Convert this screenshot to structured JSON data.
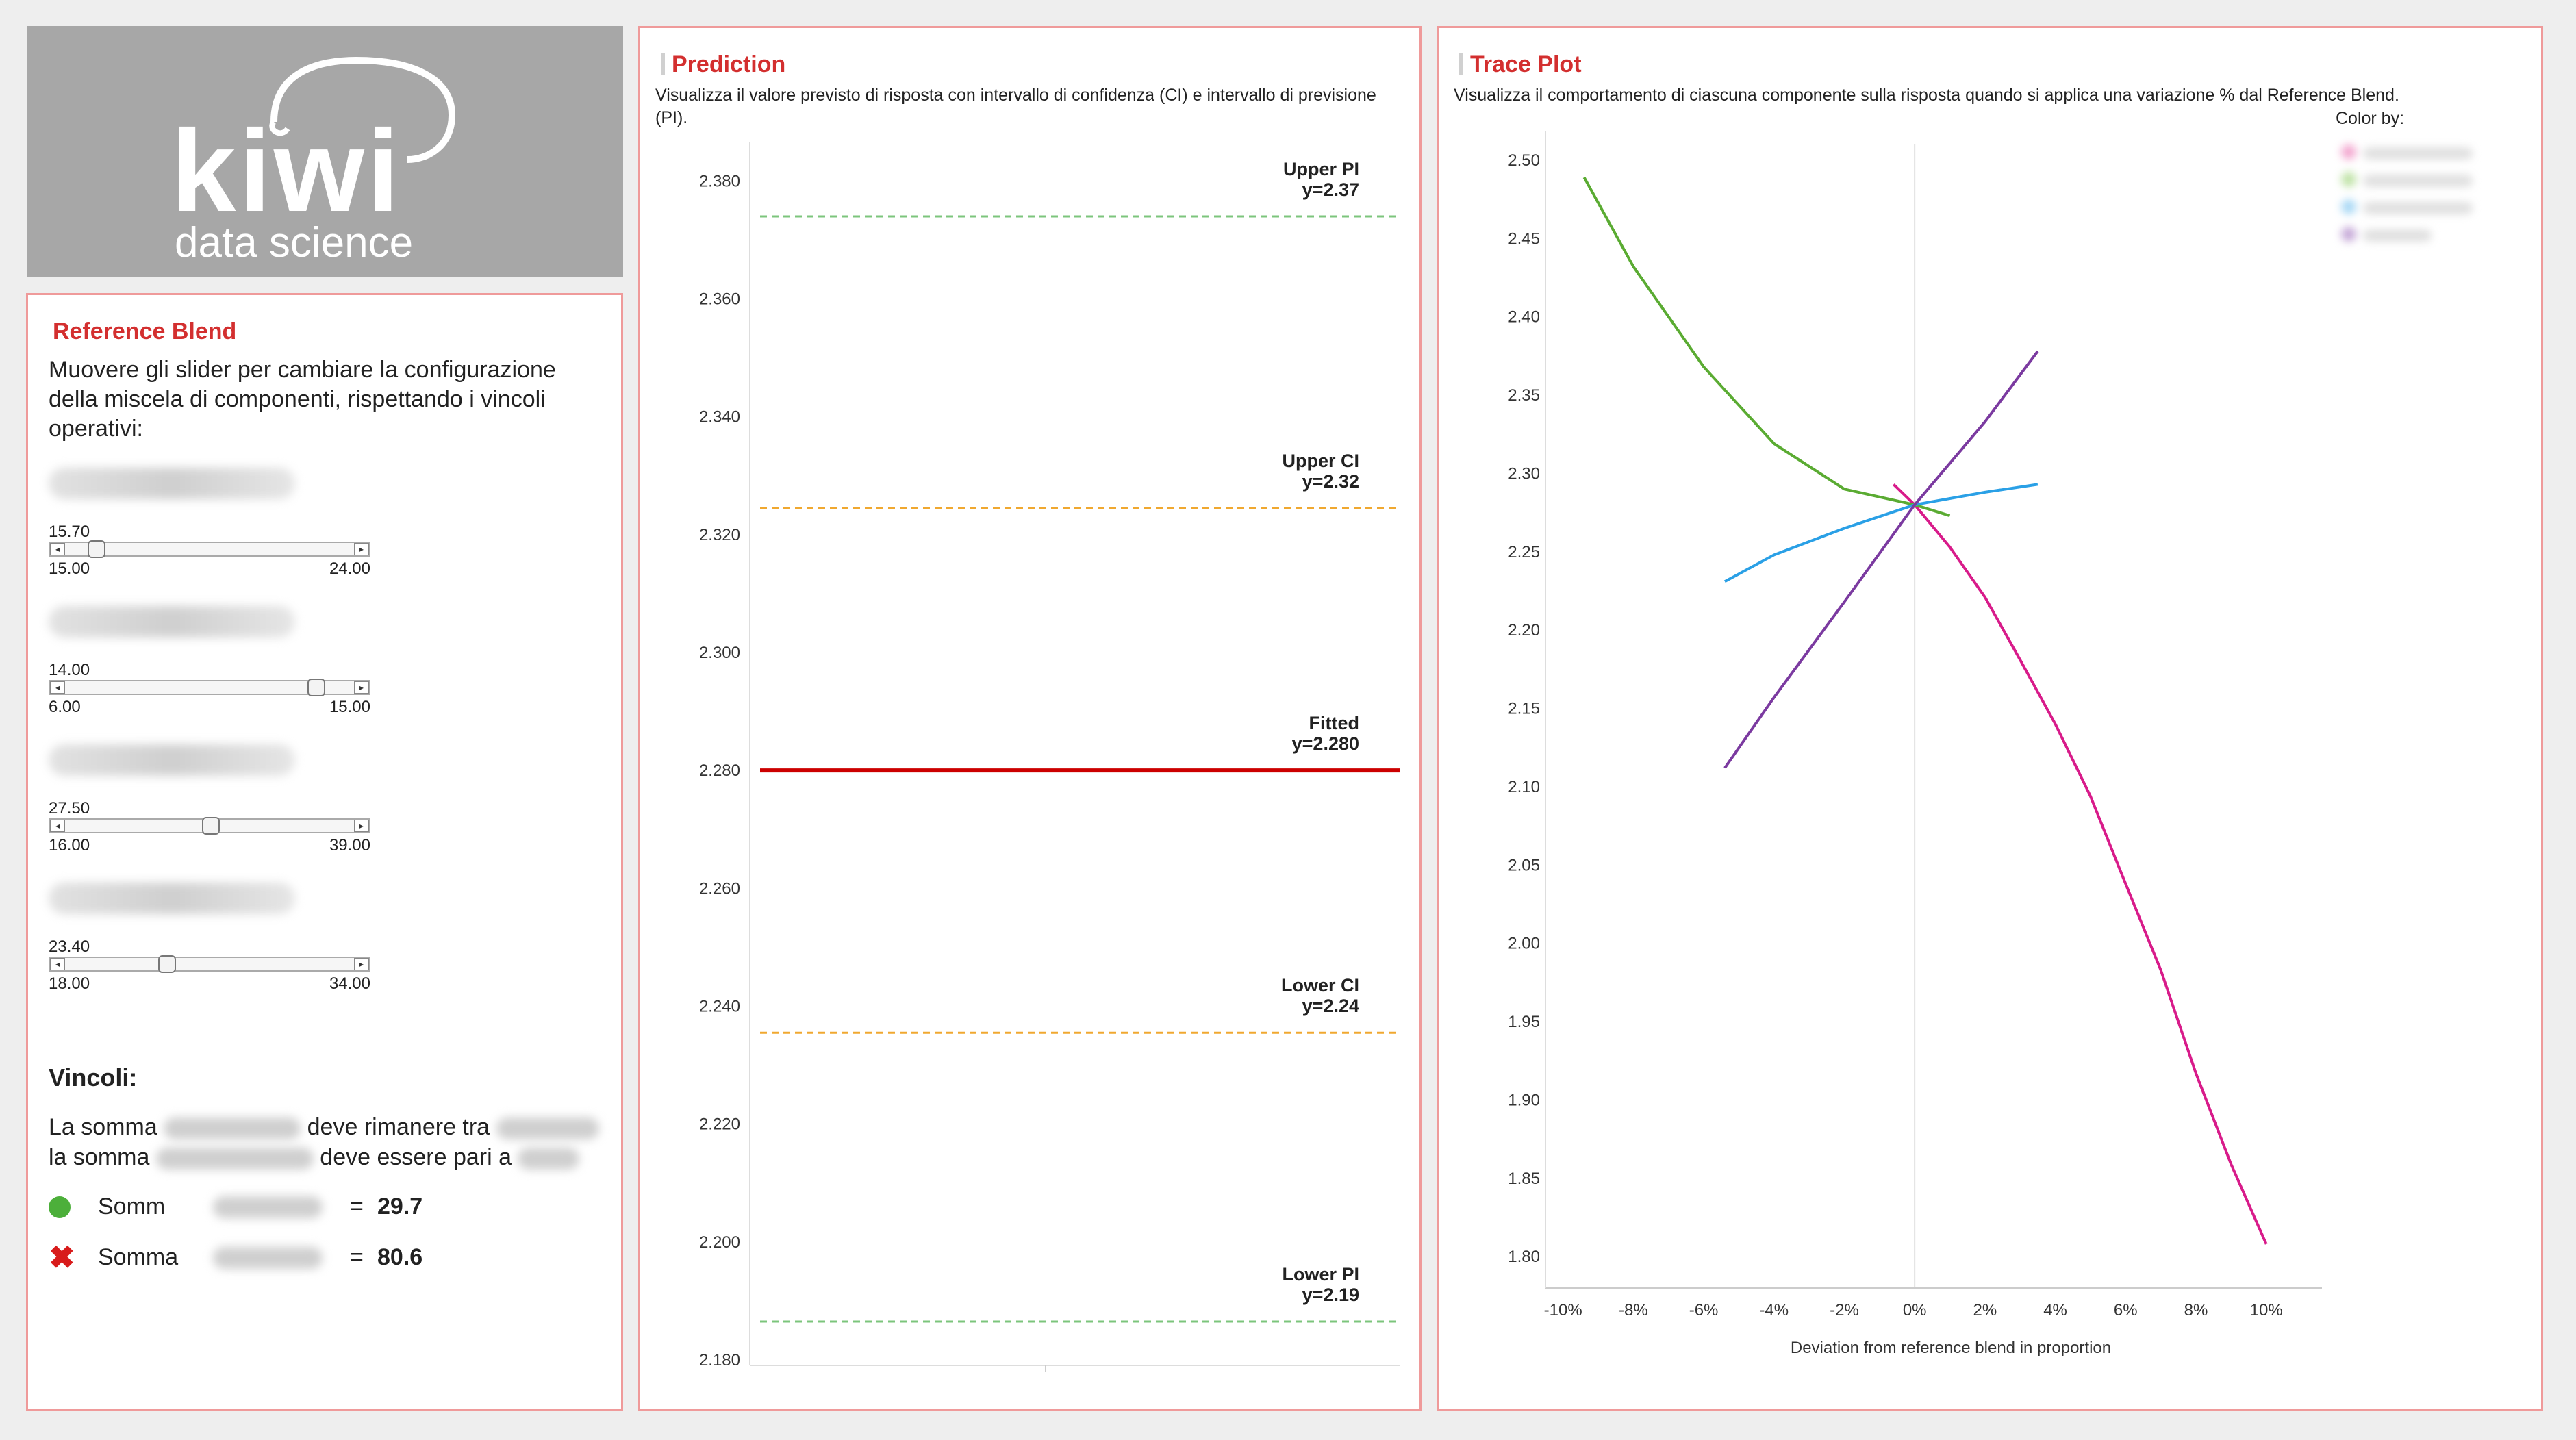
{
  "logo": {
    "brand": "kiwi",
    "tagline": "data science"
  },
  "reference_blend": {
    "title": "Reference Blend",
    "intro": "Muovere gli slider per cambiare la configurazione della miscela di componenti, rispettando i vincoli operativi:",
    "sliders": [
      {
        "value": "15.70",
        "min": "15.00",
        "max": "24.00",
        "level": 0.078
      },
      {
        "value": "14.00",
        "min": "6.00",
        "max": "15.00",
        "level": 0.889
      },
      {
        "value": "27.50",
        "min": "16.00",
        "max": "39.00",
        "level": 0.5
      },
      {
        "value": "23.40",
        "min": "18.00",
        "max": "34.00",
        "level": 0.3375
      }
    ],
    "constraints_title": "Vincoli:",
    "c1_before": "La somma",
    "c1_after": "deve rimanere tra",
    "c2_before": "la somma",
    "c2_after": "deve essere pari a",
    "row1_label": "Somm",
    "row1_eq": "=",
    "row1_value": "29.7",
    "row1_status": "ok",
    "row2_label": "Somma",
    "row2_eq": "=",
    "row2_value": "80.6",
    "row2_status": "error"
  },
  "prediction": {
    "title": "Prediction",
    "description": "Visualizza il valore previsto di risposta con intervallo di confidenza (CI) e intervallo di previsione (PI).",
    "colors": {
      "pi": "#7cc57c",
      "ci": "#f0a830",
      "fitted": "#cc0000"
    }
  },
  "trace": {
    "title": "Trace Plot",
    "description": "Visualizza il comportamento di ciascuna componente sulla risposta quando si applica una variazione % dal Reference Blend.",
    "color_by": "Color by:"
  },
  "chart_data": [
    {
      "type": "line",
      "yticks": [
        "2.380",
        "2.360",
        "2.340",
        "2.320",
        "2.300",
        "2.280",
        "2.260",
        "2.240",
        "2.220",
        "2.200",
        "2.180"
      ],
      "ylim": [
        2.18,
        2.3855
      ],
      "lines": [
        {
          "label": "Upper PI",
          "value_label": "y=2.37",
          "y": 2.374,
          "style": "dashed",
          "color": "#7cc57c"
        },
        {
          "label": "Upper CI",
          "value_label": "y=2.32",
          "y": 2.3245,
          "style": "dashed",
          "color": "#f0a830"
        },
        {
          "label": "Fitted",
          "value_label": "y=2.280",
          "y": 2.28,
          "style": "solid",
          "color": "#cc0000"
        },
        {
          "label": "Lower CI",
          "value_label": "y=2.24",
          "y": 2.2355,
          "style": "dashed",
          "color": "#f0a830"
        },
        {
          "label": "Lower PI",
          "value_label": "y=2.19",
          "y": 2.1865,
          "style": "dashed",
          "color": "#7cc57c"
        }
      ]
    },
    {
      "type": "line",
      "xlabel": "Deviation from reference blend in proportion",
      "xlim": [
        -0.105,
        0.11
      ],
      "ylim": [
        1.78,
        2.51
      ],
      "xticks": [
        {
          "v": -0.1,
          "label": "-10%"
        },
        {
          "v": -0.08,
          "label": "-8%"
        },
        {
          "v": -0.06,
          "label": "-6%"
        },
        {
          "v": -0.04,
          "label": "-4%"
        },
        {
          "v": -0.02,
          "label": "-2%"
        },
        {
          "v": 0,
          "label": "0%"
        },
        {
          "v": 0.02,
          "label": "2%"
        },
        {
          "v": 0.04,
          "label": "4%"
        },
        {
          "v": 0.06,
          "label": "6%"
        },
        {
          "v": 0.08,
          "label": "8%"
        },
        {
          "v": 0.1,
          "label": "10%"
        }
      ],
      "yticks": [
        {
          "v": 2.5,
          "label": "2.50"
        },
        {
          "v": 2.45,
          "label": "2.45"
        },
        {
          "v": 2.4,
          "label": "2.40"
        },
        {
          "v": 2.35,
          "label": "2.35"
        },
        {
          "v": 2.3,
          "label": "2.30"
        },
        {
          "v": 2.25,
          "label": "2.25"
        },
        {
          "v": 2.2,
          "label": "2.20"
        },
        {
          "v": 2.15,
          "label": "2.15"
        },
        {
          "v": 2.1,
          "label": "2.10"
        },
        {
          "v": 2.05,
          "label": "2.05"
        },
        {
          "v": 2.0,
          "label": "2.00"
        },
        {
          "v": 1.95,
          "label": "1.95"
        },
        {
          "v": 1.9,
          "label": "1.90"
        },
        {
          "v": 1.85,
          "label": "1.85"
        },
        {
          "v": 1.8,
          "label": "1.80"
        }
      ],
      "series": [
        {
          "color": "#d81b8a",
          "x": [
            -0.006,
            0,
            0.01,
            0.02,
            0.03,
            0.04,
            0.05,
            0.06,
            0.07,
            0.08,
            0.09,
            0.1
          ],
          "y": [
            2.293,
            2.28,
            2.253,
            2.221,
            2.181,
            2.14,
            2.094,
            2.038,
            1.983,
            1.917,
            1.859,
            1.808
          ]
        },
        {
          "color": "#5aab32",
          "x": [
            -0.094,
            -0.08,
            -0.06,
            -0.04,
            -0.02,
            0,
            0.01
          ],
          "y": [
            2.489,
            2.432,
            2.368,
            2.319,
            2.29,
            2.28,
            2.273
          ]
        },
        {
          "color": "#2aa0e6",
          "x": [
            -0.054,
            -0.04,
            -0.02,
            0,
            0.02,
            0.035
          ],
          "y": [
            2.231,
            2.248,
            2.265,
            2.28,
            2.288,
            2.293
          ]
        },
        {
          "color": "#7b3aa0",
          "x": [
            -0.054,
            -0.04,
            -0.02,
            0,
            0.02,
            0.035
          ],
          "y": [
            2.112,
            2.157,
            2.218,
            2.28,
            2.333,
            2.378
          ]
        }
      ]
    }
  ]
}
